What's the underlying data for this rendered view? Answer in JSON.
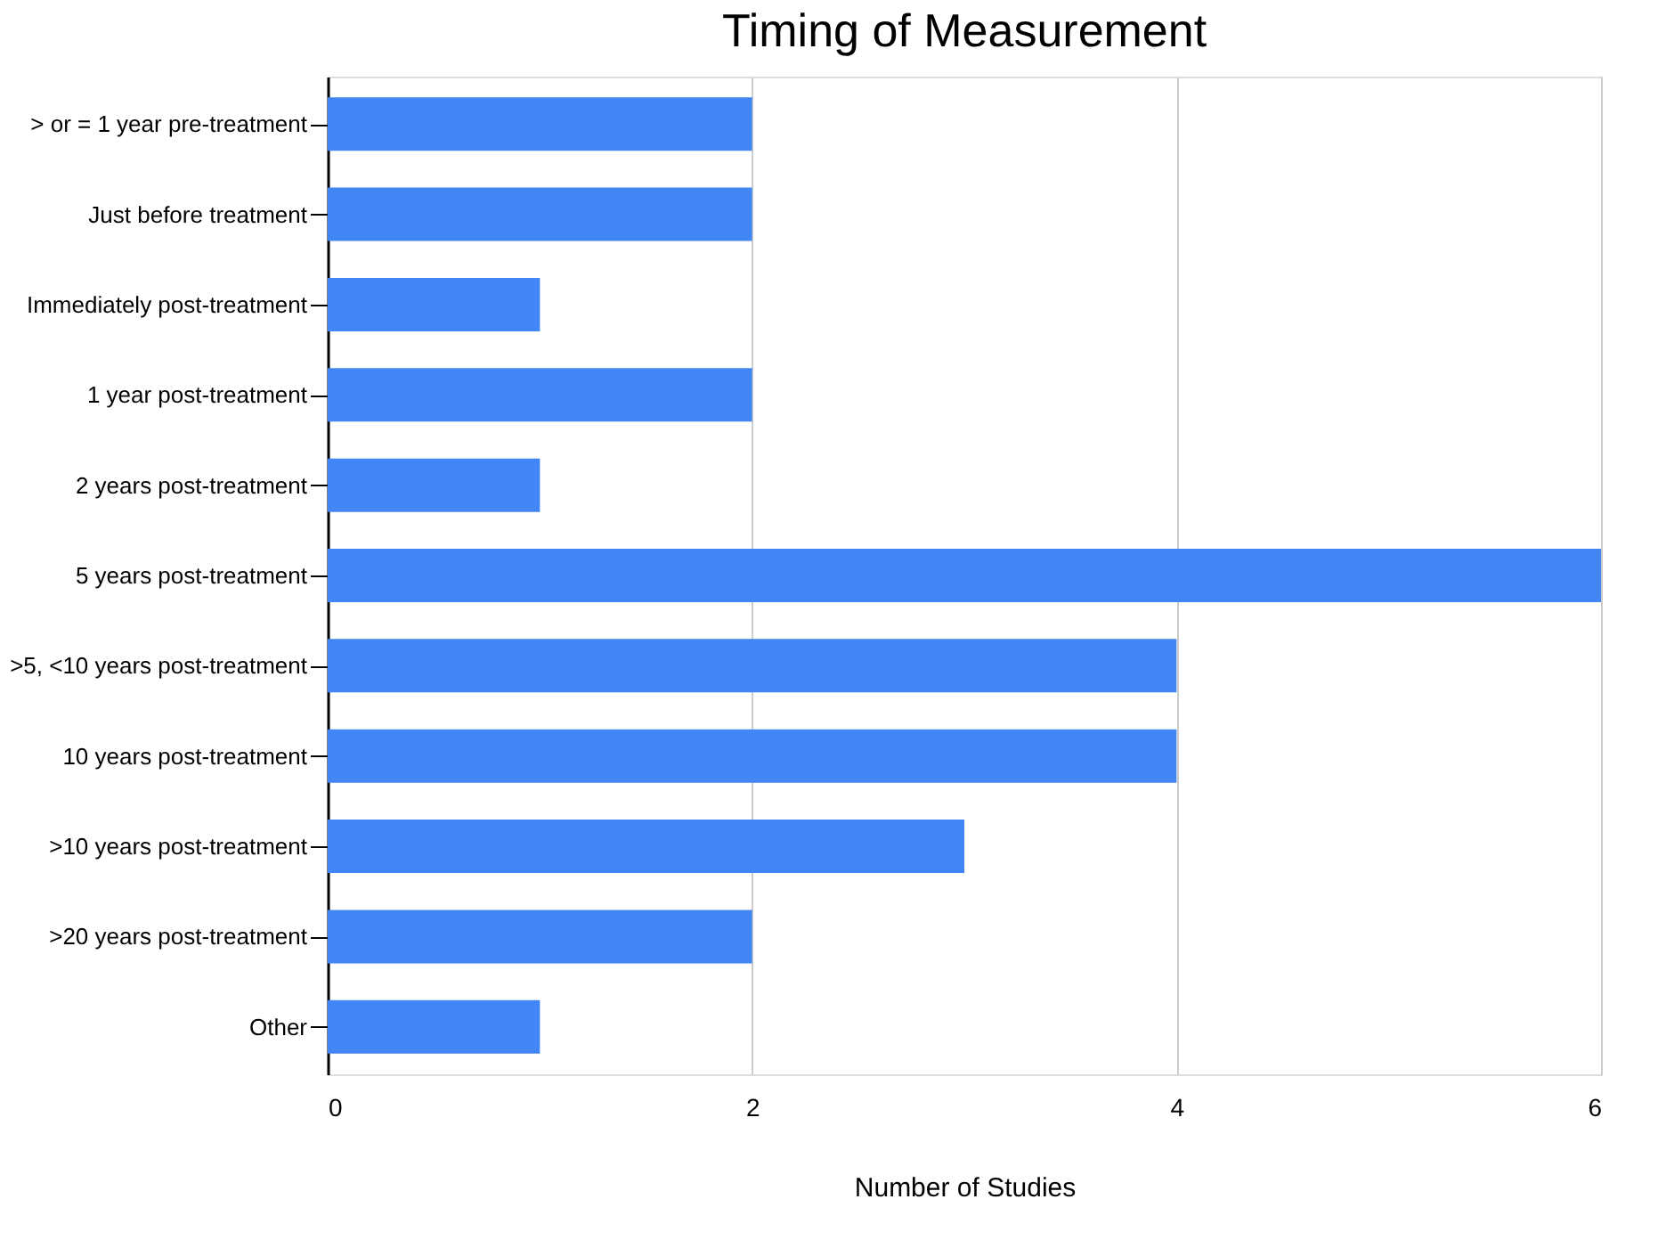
{
  "chart_data": {
    "type": "bar",
    "orientation": "horizontal",
    "title": "Timing of Measurement",
    "xlabel": "Number of Studies",
    "categories": [
      "> or = 1 year pre-treatment",
      "Just before treatment",
      "Immediately post-treatment",
      "1 year post-treatment",
      "2 years post-treatment",
      "5 years post-treatment",
      ">5, <10 years post-treatment",
      "10 years post-treatment",
      ">10 years post-treatment",
      ">20 years post-treatment",
      "Other"
    ],
    "values": [
      2,
      2,
      1,
      2,
      1,
      6,
      4,
      4,
      3,
      2,
      1
    ],
    "color": "#4285f4",
    "xlim": [
      0,
      6
    ],
    "xticks": [
      0,
      2,
      4,
      6
    ],
    "grid": "x"
  }
}
